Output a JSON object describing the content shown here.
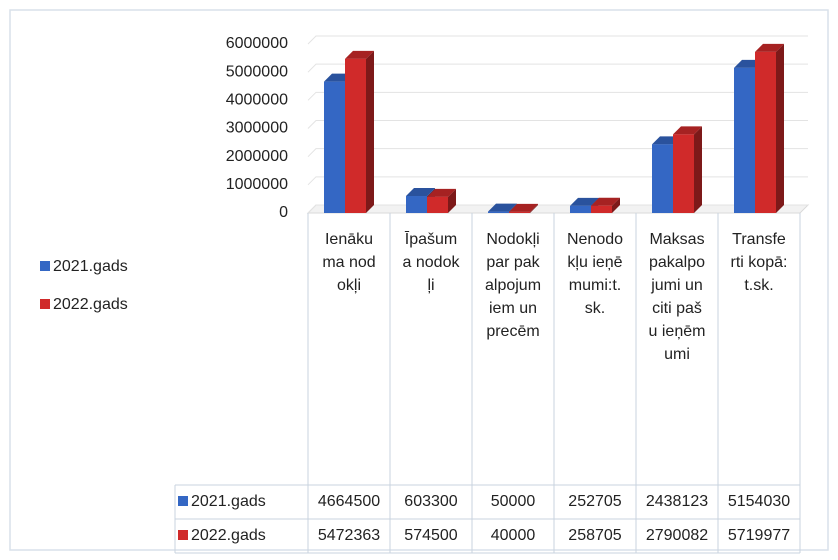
{
  "chart_data": {
    "type": "bar3d",
    "categories": [
      "Ienākuma nodokļi",
      "Īpašuma nodokļi",
      "Nodokļi par pakalpojumiem un precēm",
      "Nenodokļu ieņēmumi:t.sk.",
      "Maksas pakalpojumi un citi pašu ieņēmumi",
      "Transferti kopā: t.sk."
    ],
    "series": [
      {
        "name": "2021.gads",
        "color": "#3467c4",
        "values": [
          4664500,
          603300,
          50000,
          252705,
          2438123,
          5154030
        ]
      },
      {
        "name": "2022.gads",
        "color": "#d02a2a",
        "values": [
          5472363,
          574500,
          40000,
          258705,
          2790082,
          5719977
        ]
      }
    ],
    "ylim": [
      0,
      6000000
    ],
    "yticks": [
      0,
      1000000,
      2000000,
      3000000,
      4000000,
      5000000,
      6000000
    ],
    "grid": true,
    "legend": "left",
    "data_table": true
  }
}
